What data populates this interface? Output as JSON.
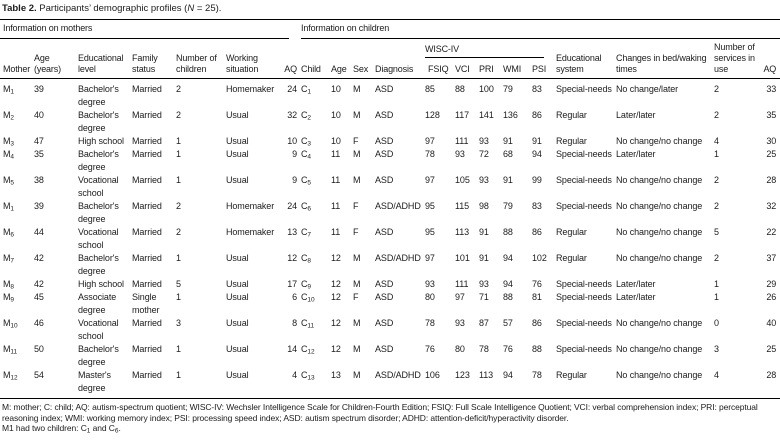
{
  "title": {
    "label": "Table 2.",
    "caption_pre": " Participants’ demographic profiles (",
    "caption_n": "N",
    "caption_post": " = 25)."
  },
  "groups": {
    "mothers": "Information on mothers",
    "children": "Information on children"
  },
  "columns": {
    "mother": "Mother",
    "age_years": "Age (years)",
    "educational_level": "Educational level",
    "family_status": "Family status",
    "number_of_children": "Number of children",
    "working_situation": "Working situation",
    "aq_mother": "AQ",
    "child": "Child",
    "age": "Age",
    "sex": "Sex",
    "diagnosis": "Diagnosis",
    "wisc_iv": "WISC-IV",
    "fsiq": "FSIQ",
    "vci": "VCI",
    "pri": "PRI",
    "wmi": "WMI",
    "psi": "PSI",
    "educational_system": "Educational system",
    "bed_waking_changes": "Changes in bed/waking times",
    "services_in_use": "Number of services in use",
    "aq_child": "AQ"
  },
  "rows": [
    [
      "M_1",
      "39",
      "Bachelor's degree",
      "Married",
      "2",
      "Homemaker",
      "24",
      "C_1",
      "10",
      "M",
      "ASD",
      "85",
      "88",
      "100",
      "79",
      "83",
      "Special-needs",
      "No change/later",
      "2",
      "33"
    ],
    [
      "M_2",
      "40",
      "Bachelor's degree",
      "Married",
      "2",
      "Usual",
      "32",
      "C_2",
      "10",
      "M",
      "ASD",
      "128",
      "117",
      "141",
      "136",
      "86",
      "Regular",
      "Later/later",
      "2",
      "35"
    ],
    [
      "M_3",
      "47",
      "High school",
      "Married",
      "1",
      "Usual",
      "10",
      "C_3",
      "10",
      "F",
      "ASD",
      "97",
      "111",
      "93",
      "91",
      "91",
      "Regular",
      "No change/no change",
      "4",
      "30"
    ],
    [
      "M_4",
      "35",
      "Bachelor's degree",
      "Married",
      "1",
      "Usual",
      "9",
      "C_4",
      "11",
      "M",
      "ASD",
      "78",
      "93",
      "72",
      "68",
      "94",
      "Special-needs",
      "Later/later",
      "1",
      "25"
    ],
    [
      "M_5",
      "38",
      "Vocational school",
      "Married",
      "1",
      "Usual",
      "9",
      "C_5",
      "11",
      "M",
      "ASD",
      "97",
      "105",
      "93",
      "91",
      "99",
      "Special-needs",
      "No change/no change",
      "2",
      "28"
    ],
    [
      "M_1",
      "39",
      "Bachelor's degree",
      "Married",
      "2",
      "Homemaker",
      "24",
      "C_6",
      "11",
      "F",
      "ASD/ADHD",
      "95",
      "115",
      "98",
      "79",
      "83",
      "Special-needs",
      "No change/no change",
      "2",
      "32"
    ],
    [
      "M_6",
      "44",
      "Vocational school",
      "Married",
      "2",
      "Homemaker",
      "13",
      "C_7",
      "11",
      "F",
      "ASD",
      "95",
      "113",
      "91",
      "88",
      "86",
      "Regular",
      "No change/no change",
      "5",
      "22"
    ],
    [
      "M_7",
      "42",
      "Bachelor's degree",
      "Married",
      "1",
      "Usual",
      "12",
      "C_8",
      "12",
      "M",
      "ASD/ADHD",
      "97",
      "101",
      "91",
      "94",
      "102",
      "Regular",
      "No change/no change",
      "2",
      "37"
    ],
    [
      "M_8",
      "42",
      "High school",
      "Married",
      "5",
      "Usual",
      "17",
      "C_9",
      "12",
      "M",
      "ASD",
      "93",
      "111",
      "93",
      "94",
      "76",
      "Special-needs",
      "Later/later",
      "1",
      "29"
    ],
    [
      "M_9",
      "45",
      "Associate degree",
      "Single mother",
      "1",
      "Usual",
      "6",
      "C_10",
      "12",
      "F",
      "ASD",
      "80",
      "97",
      "71",
      "88",
      "81",
      "Special-needs",
      "Later/later",
      "1",
      "26"
    ],
    [
      "M_10",
      "46",
      "Vocational school",
      "Married",
      "3",
      "Usual",
      "8",
      "C_11",
      "12",
      "M",
      "ASD",
      "78",
      "93",
      "87",
      "57",
      "86",
      "Special-needs",
      "No change/no change",
      "0",
      "40"
    ],
    [
      "M_11",
      "50",
      "Bachelor's degree",
      "Married",
      "1",
      "Usual",
      "14",
      "C_12",
      "12",
      "M",
      "ASD",
      "76",
      "80",
      "78",
      "76",
      "88",
      "Special-needs",
      "No change/no change",
      "3",
      "25"
    ],
    [
      "M_12",
      "54",
      "Master's degree",
      "Married",
      "1",
      "Usual",
      "4",
      "C_13",
      "13",
      "M",
      "ASD/ADHD",
      "106",
      "123",
      "113",
      "94",
      "78",
      "Regular",
      "No change/no change",
      "4",
      "28"
    ]
  ],
  "footnote": {
    "abbreviations": "M: mother; C: child; AQ: autism-spectrum quotient; WISC-IV: Wechsler Intelligence Scale for Children-Fourth Edition; FSIQ: Full Scale Intelligence Quotient; VCI: verbal comprehension index; PRI: perceptual reasoning index; WMI: working memory index; PSI: processing speed index; ASD: autism spectrum disorder; ADHD: attention-deficit/hyperactivity disorder.",
    "note_pre": "M1 had two children: C",
    "note_sub1": "1",
    "note_mid": " and C",
    "note_sub2": "6",
    "note_end": "."
  }
}
